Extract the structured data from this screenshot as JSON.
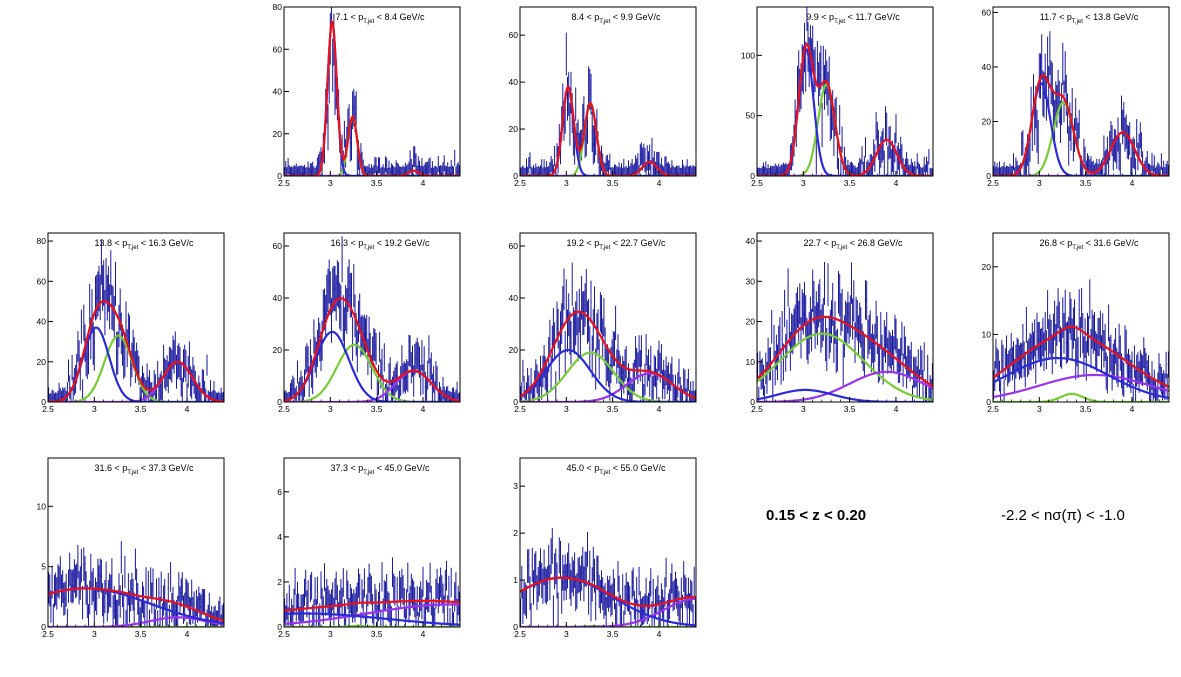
{
  "figure": {
    "notes": {
      "z_range": "0.15 < z < 0.20",
      "nsigma_range": "-2.2 < nσ(π) < -1.0"
    },
    "colors": {
      "data": "#1a1aa0",
      "total_fit": "#e8101a",
      "pion": "#2a2ad8",
      "kaon": "#77cc33",
      "proton": "#9933ee"
    }
  },
  "chart_data": [
    {
      "type": "line",
      "label_main": "7.1 < p",
      "label_sub": "T,jet",
      "label_tail": " < 8.4 GeV/c",
      "xlim": [
        2.5,
        4.4
      ],
      "ylim": [
        0,
        80
      ],
      "x_ticks": [
        "2.5",
        "3",
        "3.5",
        "4"
      ],
      "y_ticks": [
        "0",
        "20",
        "40",
        "60",
        "80"
      ],
      "components": [
        {
          "name": "pion",
          "amp": 73,
          "mu": 3.02,
          "sigma": 0.05
        },
        {
          "name": "kaon",
          "amp": 28,
          "mu": 3.24,
          "sigma": 0.05
        },
        {
          "name": "proton",
          "amp": 2.5,
          "mu": 3.9,
          "sigma": 0.06
        }
      ]
    },
    {
      "type": "line",
      "label_main": "8.4 < p",
      "label_sub": "T,jet",
      "label_tail": " < 9.9 GeV/c",
      "xlim": [
        2.5,
        4.4
      ],
      "ylim": [
        0,
        72
      ],
      "x_ticks": [
        "2.5",
        "3",
        "3.5",
        "4"
      ],
      "y_ticks": [
        "0",
        "20",
        "40",
        "60"
      ],
      "components": [
        {
          "name": "pion",
          "amp": 38,
          "mu": 3.02,
          "sigma": 0.06
        },
        {
          "name": "kaon",
          "amp": 31,
          "mu": 3.26,
          "sigma": 0.065
        },
        {
          "name": "proton",
          "amp": 6,
          "mu": 3.9,
          "sigma": 0.08
        }
      ]
    },
    {
      "type": "line",
      "label_main": "9.9 < p",
      "label_sub": "T,jet",
      "label_tail": " < 11.7 GeV/c",
      "xlim": [
        2.5,
        4.4
      ],
      "ylim": [
        0,
        140
      ],
      "x_ticks": [
        "2.5",
        "3",
        "3.5",
        "4"
      ],
      "y_ticks": [
        "0",
        "50",
        "100"
      ],
      "components": [
        {
          "name": "pion",
          "amp": 105,
          "mu": 3.03,
          "sigma": 0.08
        },
        {
          "name": "kaon",
          "amp": 76,
          "mu": 3.25,
          "sigma": 0.09
        },
        {
          "name": "proton",
          "amp": 30,
          "mu": 3.9,
          "sigma": 0.11
        }
      ]
    },
    {
      "type": "line",
      "label_main": "11.7 < p",
      "label_sub": "T,jet",
      "label_tail": " < 13.8 GeV/c",
      "xlim": [
        2.5,
        4.4
      ],
      "ylim": [
        0,
        62
      ],
      "x_ticks": [
        "2.5",
        "3",
        "3.5",
        "4"
      ],
      "y_ticks": [
        "0",
        "20",
        "40",
        "60"
      ],
      "components": [
        {
          "name": "pion",
          "amp": 34,
          "mu": 3.02,
          "sigma": 0.1
        },
        {
          "name": "kaon",
          "amp": 27,
          "mu": 3.26,
          "sigma": 0.11
        },
        {
          "name": "proton",
          "amp": 16,
          "mu": 3.9,
          "sigma": 0.13
        }
      ]
    },
    {
      "type": "line",
      "label_main": "13.8 < p",
      "label_sub": "T,jet",
      "label_tail": " < 16.3 GeV/c",
      "xlim": [
        2.5,
        4.4
      ],
      "ylim": [
        0,
        84
      ],
      "x_ticks": [
        "2.5",
        "3",
        "3.5",
        "4"
      ],
      "y_ticks": [
        "0",
        "20",
        "40",
        "60",
        "80"
      ],
      "components": [
        {
          "name": "pion",
          "amp": 37,
          "mu": 3.02,
          "sigma": 0.14
        },
        {
          "name": "kaon",
          "amp": 33,
          "mu": 3.26,
          "sigma": 0.15
        },
        {
          "name": "proton",
          "amp": 20,
          "mu": 3.9,
          "sigma": 0.16
        }
      ]
    },
    {
      "type": "line",
      "label_main": "16.3 < p",
      "label_sub": "T,jet",
      "label_tail": " < 19.2 GeV/c",
      "xlim": [
        2.5,
        4.4
      ],
      "ylim": [
        0,
        65
      ],
      "x_ticks": [
        "2.5",
        "3",
        "3.5",
        "4"
      ],
      "y_ticks": [
        "0",
        "20",
        "40",
        "60"
      ],
      "components": [
        {
          "name": "pion",
          "amp": 27,
          "mu": 3.02,
          "sigma": 0.18
        },
        {
          "name": "kaon",
          "amp": 22,
          "mu": 3.26,
          "sigma": 0.19
        },
        {
          "name": "proton",
          "amp": 12,
          "mu": 3.9,
          "sigma": 0.19
        }
      ]
    },
    {
      "type": "line",
      "label_main": "19.2 < p",
      "label_sub": "T,jet",
      "label_tail": " < 22.7 GeV/c",
      "xlim": [
        2.5,
        4.4
      ],
      "ylim": [
        0,
        65
      ],
      "x_ticks": [
        "2.5",
        "3",
        "3.5",
        "4"
      ],
      "y_ticks": [
        "0",
        "20",
        "40",
        "60"
      ],
      "components": [
        {
          "name": "pion",
          "amp": 20,
          "mu": 3.02,
          "sigma": 0.24
        },
        {
          "name": "kaon",
          "amp": 19,
          "mu": 3.26,
          "sigma": 0.25
        },
        {
          "name": "proton",
          "amp": 11,
          "mu": 3.9,
          "sigma": 0.25
        }
      ]
    },
    {
      "type": "line",
      "label_main": "22.7 < p",
      "label_sub": "T,jet",
      "label_tail": " < 26.8 GeV/c",
      "xlim": [
        2.5,
        4.4
      ],
      "ylim": [
        0,
        42
      ],
      "x_ticks": [
        "2.5",
        "3",
        "3.5",
        "4"
      ],
      "y_ticks": [
        "0",
        "10",
        "20",
        "30",
        "40"
      ],
      "components": [
        {
          "name": "pion",
          "amp": 3,
          "mu": 3.02,
          "sigma": 0.3
        },
        {
          "name": "kaon",
          "amp": 17,
          "mu": 3.2,
          "sigma": 0.45
        },
        {
          "name": "proton",
          "amp": 7.5,
          "mu": 3.9,
          "sigma": 0.4
        }
      ]
    },
    {
      "type": "line",
      "label_main": "26.8 < p",
      "label_sub": "T,jet",
      "label_tail": " < 31.6 GeV/c",
      "xlim": [
        2.5,
        4.4
      ],
      "ylim": [
        0,
        25
      ],
      "x_ticks": [
        "2.5",
        "3",
        "3.5",
        "4"
      ],
      "y_ticks": [
        "0",
        "10",
        "20"
      ],
      "components": [
        {
          "name": "pion",
          "amp": 6.5,
          "mu": 3.2,
          "sigma": 0.55
        },
        {
          "name": "kaon",
          "amp": 1.2,
          "mu": 3.35,
          "sigma": 0.12
        },
        {
          "name": "proton",
          "amp": 4,
          "mu": 3.6,
          "sigma": 0.6
        }
      ]
    },
    {
      "type": "line",
      "label_main": "31.6 < p",
      "label_sub": "T,jet",
      "label_tail": " < 37.3 GeV/c",
      "xlim": [
        2.5,
        4.4
      ],
      "ylim": [
        0,
        14
      ],
      "x_ticks": [
        "2.5",
        "3",
        "3.5",
        "4"
      ],
      "y_ticks": [
        "0",
        "5",
        "10"
      ],
      "components": [
        {
          "name": "pion",
          "amp": 3.2,
          "mu": 2.9,
          "sigma": 0.7
        },
        {
          "name": "kaon",
          "amp": 0.05,
          "mu": 3.3,
          "sigma": 0.1
        },
        {
          "name": "proton",
          "amp": 0.8,
          "mu": 3.9,
          "sigma": 0.3
        }
      ]
    },
    {
      "type": "line",
      "label_main": "37.3 < p",
      "label_sub": "T,jet",
      "label_tail": " < 45.0 GeV/c",
      "xlim": [
        2.5,
        4.4
      ],
      "ylim": [
        0,
        7.5
      ],
      "x_ticks": [
        "2.5",
        "3",
        "3.5",
        "4"
      ],
      "y_ticks": [
        "0",
        "2",
        "4",
        "6"
      ],
      "components": [
        {
          "name": "pion",
          "amp": 0.6,
          "mu": 2.7,
          "sigma": 0.9
        },
        {
          "name": "kaon",
          "amp": 0.05,
          "mu": 3.3,
          "sigma": 0.1
        },
        {
          "name": "proton",
          "amp": 1.0,
          "mu": 4.3,
          "sigma": 0.9
        }
      ]
    },
    {
      "type": "line",
      "label_main": "45.0 < p",
      "label_sub": "T,jet",
      "label_tail": " < 55.0 GeV/c",
      "xlim": [
        2.5,
        4.4
      ],
      "ylim": [
        0,
        3.6
      ],
      "x_ticks": [
        "2.5",
        "3",
        "3.5",
        "4"
      ],
      "y_ticks": [
        "0",
        "1",
        "2",
        "3"
      ],
      "components": [
        {
          "name": "pion",
          "amp": 1.05,
          "mu": 2.95,
          "sigma": 0.55
        },
        {
          "name": "kaon",
          "amp": 0.02,
          "mu": 3.3,
          "sigma": 0.1
        },
        {
          "name": "proton",
          "amp": 0.6,
          "mu": 4.4,
          "sigma": 0.35
        }
      ]
    }
  ]
}
